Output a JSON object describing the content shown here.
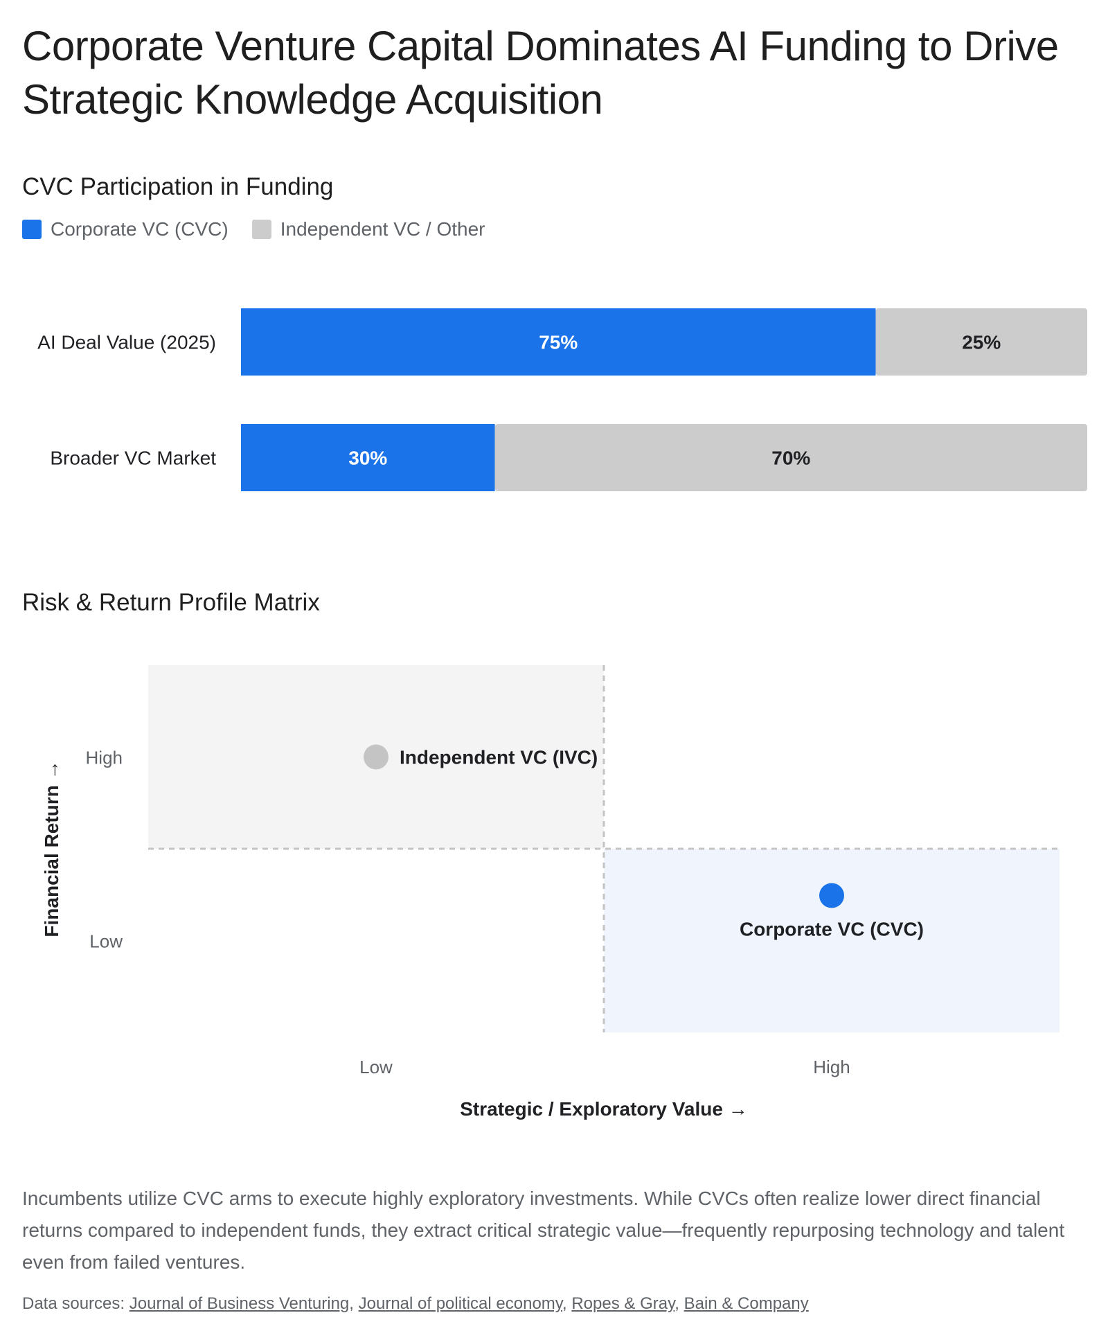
{
  "header": {
    "title": "Corporate Venture Capital Dominates AI Funding to Drive Strategic Knowledge Acquisition"
  },
  "colors": {
    "cvc": "#1a73e8",
    "other": "#cccccc",
    "ivc_point": "#c4c4c4",
    "cvc_quadrant": "#f0f5fd",
    "ivc_quadrant": "#f4f4f4"
  },
  "chart_data": [
    {
      "type": "bar",
      "orientation": "horizontal",
      "stacked": true,
      "title": "CVC Participation in Funding",
      "categories": [
        "AI Deal Value (2025)",
        "Broader VC Market"
      ],
      "series": [
        {
          "name": "Corporate VC (CVC)",
          "values": [
            75,
            30
          ],
          "labels": [
            "75%",
            "30%"
          ]
        },
        {
          "name": "Independent VC / Other",
          "values": [
            25,
            70
          ],
          "labels": [
            "25%",
            "70%"
          ]
        }
      ],
      "xlim": [
        0,
        100
      ],
      "legend": "top-left"
    },
    {
      "type": "scatter",
      "title": "Risk & Return Profile Matrix",
      "xlabel": "Strategic / Exploratory Value →",
      "ylabel": "Financial Return →",
      "x_ticks": [
        "Low",
        "High"
      ],
      "y_ticks": [
        "High",
        "Low"
      ],
      "points": [
        {
          "name": "Independent VC (IVC)",
          "x": "Low",
          "y": "High"
        },
        {
          "name": "Corporate VC (CVC)",
          "x": "High",
          "y": "Low"
        }
      ]
    }
  ],
  "footer": {
    "summary": "Incumbents utilize CVC arms to execute highly exploratory investments. While CVCs often realize lower direct financial returns compared to independent funds, they extract critical strategic value—frequently repurposing technology and talent even from failed ventures.",
    "sources_label": "Data sources:",
    "sources": [
      "Journal of Business Venturing",
      "Journal of political economy",
      "Ropes & Gray",
      "Bain & Company"
    ]
  }
}
